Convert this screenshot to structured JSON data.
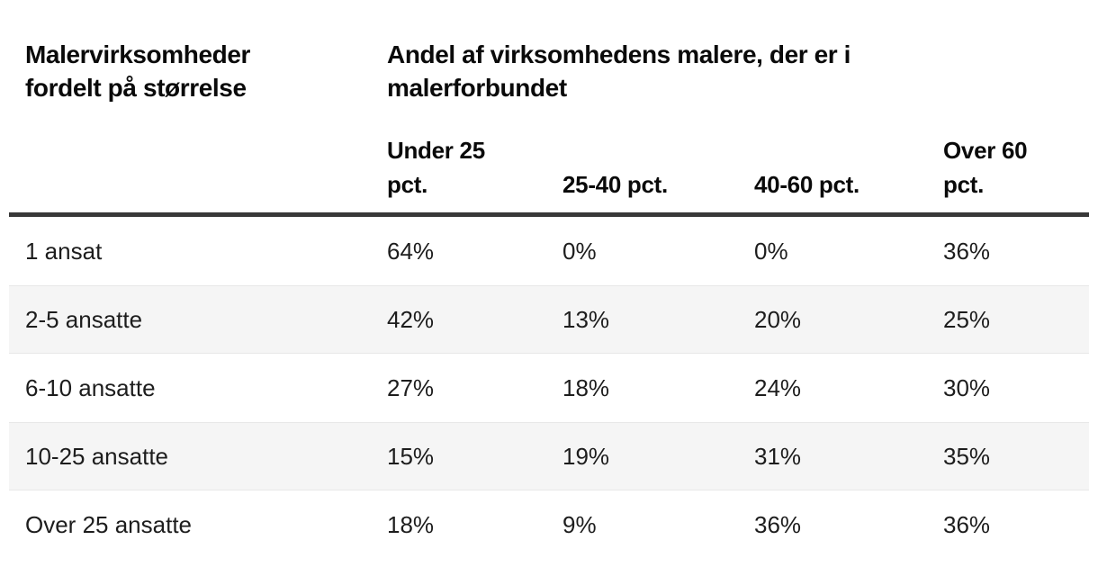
{
  "chart_data": {
    "type": "table",
    "row_dimension_title": "Malervirksomheder fordelt på størrelse",
    "column_dimension_title": "Andel af virksomhedens malere, der er i malerforbundet",
    "columns": [
      "Under 25 pct.",
      "25-40 pct.",
      "40-60 pct.",
      "Over 60 pct."
    ],
    "rows": [
      {
        "label": "1 ansat",
        "values_pct": [
          64,
          0,
          0,
          36
        ]
      },
      {
        "label": "2-5 ansatte",
        "values_pct": [
          42,
          13,
          20,
          25
        ]
      },
      {
        "label": "6-10 ansatte",
        "values_pct": [
          27,
          18,
          24,
          30
        ]
      },
      {
        "label": "10-25 ansatte",
        "values_pct": [
          15,
          19,
          31,
          35
        ]
      },
      {
        "label": "Over 25 ansatte",
        "values_pct": [
          18,
          9,
          36,
          36
        ]
      }
    ],
    "layout": {
      "zebra_striping": true,
      "header_rule": true
    }
  },
  "display": {
    "title_left": "Malervirksomheder\nfordelt på størrelse",
    "title_right": "Andel af virksomhedens malere, der er i\nmalerforbundet",
    "col_headers": [
      "Under 25\npct.",
      "25-40 pct.",
      "40-60 pct.",
      "Over 60\npct."
    ],
    "rows": [
      {
        "label": "1 ansat",
        "values": [
          "64%",
          "0%",
          "0%",
          "36%"
        ]
      },
      {
        "label": "2-5 ansatte",
        "values": [
          "42%",
          "13%",
          "20%",
          "25%"
        ]
      },
      {
        "label": "6-10 ansatte",
        "values": [
          "27%",
          "18%",
          "24%",
          "30%"
        ]
      },
      {
        "label": "10-25 ansatte",
        "values": [
          "15%",
          "19%",
          "31%",
          "35%"
        ]
      },
      {
        "label": "Over 25 ansatte",
        "values": [
          "18%",
          "9%",
          "36%",
          "36%"
        ]
      }
    ]
  },
  "colors": {
    "header_rule": "#383838",
    "zebra_row_bg": "#f5f5f5",
    "zebra_row_edge": "#e8e8e8",
    "heading_text": "#0a0a0a",
    "body_text": "#1d1d1d",
    "background": "#ffffff"
  }
}
